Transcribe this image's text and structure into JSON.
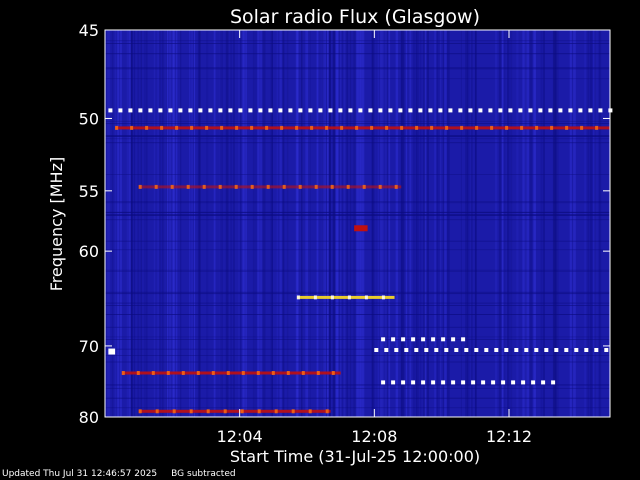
{
  "chart_data": {
    "type": "heatmap",
    "title": "Solar radio Flux (Glasgow)",
    "xlabel": "Start Time (31-Jul-25 12:00:00)",
    "ylabel": "Frequency [MHz]",
    "x_ticks": [
      "12:04",
      "12:08",
      "12:12"
    ],
    "x_tick_minutes": [
      4,
      8,
      12
    ],
    "xlim_minutes": [
      0,
      15
    ],
    "y_ticks": [
      45,
      50,
      55,
      60,
      70,
      80
    ],
    "ylim": [
      45,
      80
    ],
    "y_scale": "reciprocal",
    "colors": {
      "background": "#000000",
      "plot_bg": "#1b1ba8",
      "low": "#0c0c80",
      "mid": "#3535e0",
      "red": "#c01010",
      "orange": "#ff7010",
      "yellow": "#ffe020",
      "white": "#ffffff"
    },
    "features": [
      {
        "kind": "interference_line",
        "freq": 49.5,
        "t_start": 0.1,
        "t_end": 15,
        "color": "white",
        "dashed": true
      },
      {
        "kind": "interference_line",
        "freq": 50.6,
        "t_start": 0.3,
        "t_end": 15,
        "color": "red"
      },
      {
        "kind": "interference_line",
        "freq": 54.7,
        "t_start": 1.0,
        "t_end": 8.8,
        "color": "red",
        "faint": true
      },
      {
        "kind": "interference_line",
        "freq": 64.5,
        "t_start": 5.7,
        "t_end": 8.6,
        "color": "yellow"
      },
      {
        "kind": "interference_line",
        "freq": 69.2,
        "t_start": 8.2,
        "t_end": 10.6,
        "color": "white",
        "dashed": true
      },
      {
        "kind": "interference_line",
        "freq": 70.5,
        "t_start": 8.0,
        "t_end": 15,
        "color": "white",
        "dashed": true
      },
      {
        "kind": "interference_line",
        "freq": 73.5,
        "t_start": 0.5,
        "t_end": 7.0,
        "color": "red"
      },
      {
        "kind": "interference_line",
        "freq": 74.8,
        "t_start": 8.2,
        "t_end": 13.5,
        "color": "white",
        "dashed": true
      },
      {
        "kind": "interference_line",
        "freq": 79.1,
        "t_start": 1.0,
        "t_end": 6.7,
        "color": "red"
      },
      {
        "kind": "patch",
        "freq": 58.0,
        "t_start": 7.4,
        "t_end": 7.8,
        "color": "red"
      },
      {
        "kind": "patch",
        "freq": 70.7,
        "t_start": 0.1,
        "t_end": 0.3,
        "color": "white"
      }
    ]
  },
  "footer": {
    "updated": "Updated Thu Jul 31 12:46:57 2025",
    "note": "BG subtracted"
  }
}
